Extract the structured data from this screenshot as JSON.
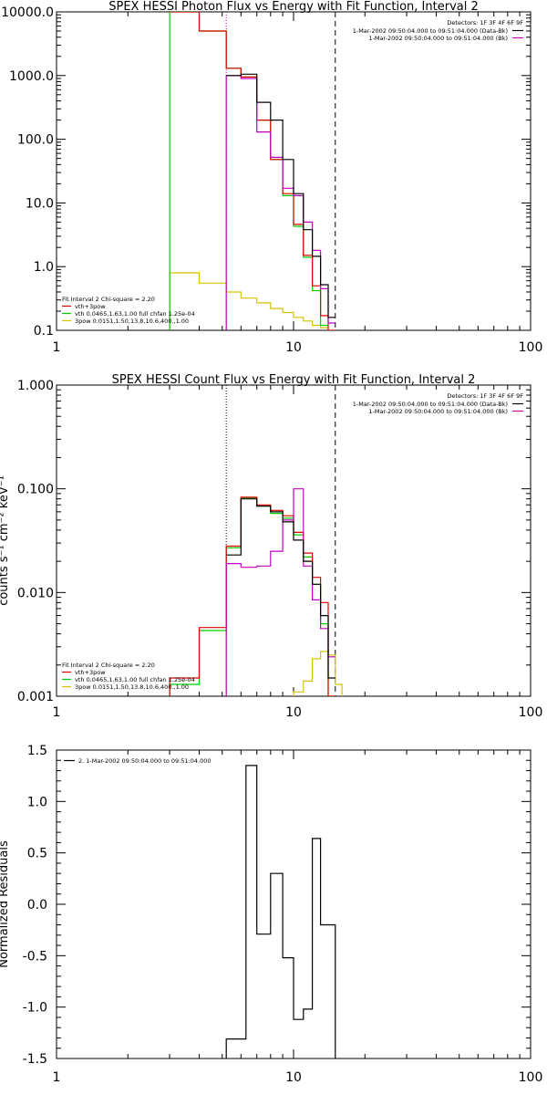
{
  "chart_data": [
    {
      "type": "line",
      "title": "SPEX HESSI Photon Flux vs Energy with Fit Function, Interval 2",
      "xscale": "log",
      "yscale": "log",
      "xlim": [
        1,
        100
      ],
      "ylim": [
        0.1,
        10000
      ],
      "x_ticks": [
        "1",
        "10",
        "100"
      ],
      "y_ticks": [
        "0.1",
        "1.0",
        "10.0",
        "100.0",
        "1000.0",
        "10000.0"
      ],
      "legend_top": {
        "header": "Detectors: 1F 3F 4F 6F 9F",
        "entries": [
          {
            "text": "1-Mar-2002 09:50:04.000 to 09:51:04.000 (Data-Bk)",
            "color": "#000000"
          },
          {
            "text": "1-Mar-2002 09:50:04.000 to 09:51:04.000 (Bk)",
            "color": "#c000c0"
          }
        ]
      },
      "legend_bottom": [
        {
          "text": "Fit Interval 2   Chi-square = 2.20",
          "color": ""
        },
        {
          "text": "vth+3pow",
          "color": "#e00000"
        },
        {
          "text": "vth 0.0465,1.63,1.00  full chfan 1.25e-04",
          "color": "#00d000"
        },
        {
          "text": "3pow 0.0151,1.50,13.8,10.6,400.,1.00",
          "color": "#d8c000"
        }
      ],
      "vlines": [
        {
          "x": 5.2,
          "style": "dotted",
          "color": "#c000c0"
        },
        {
          "x": 15,
          "style": "dashed",
          "color": "#000000"
        }
      ],
      "series": [
        {
          "name": "1-Mar-2002 09:50:04.000 to 09:51:04.000 (Data-Bk)",
          "color": "#000000",
          "step": true,
          "x": [
            5.2,
            6,
            6,
            7,
            7,
            8,
            8,
            9,
            9,
            10,
            10,
            11,
            11,
            12,
            12,
            13,
            13,
            14,
            14,
            15
          ],
          "y": [
            1000,
            1000,
            1050,
            1050,
            380,
            380,
            200,
            200,
            48,
            48,
            14,
            14,
            3.8,
            3.8,
            1.45,
            1.45,
            0.52,
            0.52,
            0.16,
            0.16
          ]
        },
        {
          "name": "1-Mar-2002 09:50:04.000 to 09:51:04.000 (Bk)",
          "color": "#c000c0",
          "step": true,
          "x": [
            5.2,
            5.2,
            6,
            6,
            7,
            7,
            8,
            8,
            9,
            9,
            10,
            10,
            11,
            11,
            12,
            12,
            13,
            13,
            14,
            14,
            15
          ],
          "y": [
            0.1,
            1000,
            1000,
            900,
            900,
            130,
            130,
            52,
            52,
            17,
            17,
            13,
            13,
            5,
            5,
            1.8,
            1.8,
            0.45,
            0.45,
            0.13,
            0.13
          ]
        },
        {
          "name": "vth+3pow",
          "color": "#e00000",
          "step": true,
          "x": [
            3,
            4,
            4,
            5.2,
            5.2,
            6,
            6,
            7,
            7,
            8,
            8,
            9,
            9,
            10,
            10,
            11,
            11,
            12,
            12,
            13,
            13,
            14,
            14,
            15
          ],
          "y": [
            10000,
            10000,
            5000,
            5000,
            1300,
            1300,
            950,
            950,
            200,
            200,
            48,
            48,
            14,
            14,
            4.6,
            4.6,
            1.5,
            1.5,
            0.5,
            0.5,
            0.17,
            0.17,
            0.1,
            0.1
          ]
        },
        {
          "name": "vth 0.0465,1.63,1.00  full chfan 1.25e-04",
          "color": "#00d000",
          "step": true,
          "x": [
            3,
            3,
            4,
            4,
            5.2,
            5.2,
            6,
            6,
            7,
            7,
            8,
            8,
            9,
            9,
            10,
            10,
            11,
            11,
            12,
            12,
            13,
            13,
            14
          ],
          "y": [
            0.1,
            10000,
            10000,
            5000,
            5000,
            1300,
            1300,
            950,
            950,
            200,
            200,
            48,
            48,
            13,
            13,
            4.3,
            4.3,
            1.4,
            1.4,
            0.42,
            0.42,
            0.12,
            0.12
          ]
        },
        {
          "name": "3pow 0.0151,1.50,13.8,10.6,400.,1.00",
          "color": "#d8c000",
          "step": true,
          "x": [
            3,
            3,
            4,
            4,
            5.2,
            5.2,
            6,
            6,
            7,
            7,
            8,
            8,
            9,
            9,
            10,
            10,
            11,
            11,
            12,
            12,
            13,
            13,
            14,
            14
          ],
          "y": [
            0.1,
            0.8,
            0.8,
            0.55,
            0.55,
            0.4,
            0.4,
            0.32,
            0.32,
            0.27,
            0.27,
            0.22,
            0.22,
            0.19,
            0.19,
            0.16,
            0.16,
            0.14,
            0.14,
            0.12,
            0.12,
            0.11,
            0.11,
            0.1
          ]
        }
      ]
    },
    {
      "type": "line",
      "title": "SPEX HESSI Count Flux vs Energy with Fit Function, Interval 2",
      "ylabel": "counts s⁻¹ cm⁻² keV⁻¹",
      "xscale": "log",
      "yscale": "log",
      "xlim": [
        1,
        100
      ],
      "ylim": [
        0.001,
        1
      ],
      "x_ticks": [
        "1",
        "10",
        "100"
      ],
      "y_ticks": [
        "0.001",
        "0.010",
        "0.100",
        "1.000"
      ],
      "legend_top": {
        "header": "Detectors: 1F 3F 4F 6F 9F",
        "entries": [
          {
            "text": "1-Mar-2002 09:50:04.000 to 09:51:04.000 (Data-Bk)",
            "color": "#000000"
          },
          {
            "text": "1-Mar-2002 09:50:04.000 to 09:51:04.000 (Bk)",
            "color": "#c000c0"
          }
        ]
      },
      "legend_bottom": [
        {
          "text": "Fit Interval 2   Chi-square = 2.20",
          "color": ""
        },
        {
          "text": "vth+3pow",
          "color": "#e00000"
        },
        {
          "text": "vth 0.0465,1.63,1.00  full chfan 1.25e-04",
          "color": "#00d000"
        },
        {
          "text": "3pow 0.0151,1.50,13.8,10.6,400.,1.00",
          "color": "#d8c000"
        }
      ],
      "vlines": [
        {
          "x": 5.2,
          "style": "dotted",
          "color": "#000000"
        },
        {
          "x": 15,
          "style": "dashed",
          "color": "#000000"
        }
      ],
      "series": [
        {
          "name": "1-Mar-2002 09:50:04.000 to 09:51:04.000 (Data-Bk)",
          "color": "#000000",
          "step": true,
          "x": [
            5.2,
            6,
            6,
            7,
            7,
            8,
            8,
            9,
            9,
            10,
            10,
            11,
            11,
            12,
            12,
            13,
            13,
            14,
            14,
            15
          ],
          "y": [
            0.023,
            0.023,
            0.08,
            0.08,
            0.068,
            0.068,
            0.06,
            0.06,
            0.048,
            0.048,
            0.032,
            0.032,
            0.02,
            0.02,
            0.012,
            0.012,
            0.006,
            0.006,
            0.0015,
            0.0015
          ]
        },
        {
          "name": "1-Mar-2002 09:50:04.000 to 09:51:04.000 (Bk)",
          "color": "#c000c0",
          "step": true,
          "x": [
            5.2,
            5.2,
            6,
            6,
            7,
            7,
            8,
            8,
            9,
            9,
            10,
            10,
            11,
            11,
            12,
            12,
            13,
            13,
            14,
            14,
            15
          ],
          "y": [
            0.001,
            0.019,
            0.019,
            0.0175,
            0.0175,
            0.018,
            0.018,
            0.025,
            0.025,
            0.05,
            0.05,
            0.1,
            0.1,
            0.018,
            0.018,
            0.0085,
            0.0085,
            0.0045,
            0.0045,
            0.0024,
            0.0024
          ]
        },
        {
          "name": "vth+3pow",
          "color": "#e00000",
          "step": true,
          "x": [
            3,
            3,
            4,
            4,
            5.2,
            5.2,
            6,
            6,
            7,
            7,
            8,
            8,
            9,
            9,
            10,
            10,
            11,
            11,
            12,
            12,
            13,
            13,
            14,
            14,
            15
          ],
          "y": [
            0.001,
            0.0015,
            0.0015,
            0.0046,
            0.0046,
            0.028,
            0.028,
            0.083,
            0.083,
            0.07,
            0.07,
            0.062,
            0.062,
            0.055,
            0.055,
            0.038,
            0.038,
            0.024,
            0.024,
            0.014,
            0.014,
            0.008,
            0.008,
            0.001,
            0.001
          ]
        },
        {
          "name": "vth 0.0465,1.63,1.00  full chfan 1.25e-04",
          "color": "#00d000",
          "step": true,
          "x": [
            3,
            3,
            4,
            4,
            5.2,
            5.2,
            6,
            6,
            7,
            7,
            8,
            8,
            9,
            9,
            10,
            10,
            11,
            11,
            12,
            12,
            13,
            13,
            14,
            14,
            15
          ],
          "y": [
            0.001,
            0.0013,
            0.0013,
            0.0043,
            0.0043,
            0.027,
            0.027,
            0.082,
            0.082,
            0.068,
            0.068,
            0.058,
            0.058,
            0.052,
            0.052,
            0.036,
            0.036,
            0.022,
            0.022,
            0.012,
            0.012,
            0.005,
            0.005,
            0.001,
            0.001
          ]
        },
        {
          "name": "3pow 0.0151,1.50,13.8,10.6,400.,1.00",
          "color": "#d8c000",
          "step": true,
          "x": [
            10,
            10,
            11,
            11,
            12,
            12,
            13,
            13,
            14,
            14,
            15,
            15,
            16,
            16
          ],
          "y": [
            0.001,
            0.0011,
            0.0011,
            0.0014,
            0.0014,
            0.0023,
            0.0023,
            0.0027,
            0.0027,
            0.0025,
            0.0025,
            0.0013,
            0.0013,
            0.001
          ]
        }
      ]
    },
    {
      "type": "line",
      "ylabel": "Normalized Residuals",
      "xscale": "log",
      "yscale": "linear",
      "xlim": [
        1,
        100
      ],
      "ylim": [
        -1.5,
        1.5
      ],
      "x_ticks": [
        "1",
        "10",
        "100"
      ],
      "y_ticks": [
        "-1.5",
        "-1.0",
        "-0.5",
        "0.0",
        "0.5",
        "1.0",
        "1.5"
      ],
      "legend_top_left": {
        "text": "2. 1-Mar-2002 09:50:04.000 to 09:51:04.000",
        "color": "#000000"
      },
      "series": [
        {
          "name": "2. 1-Mar-2002 09:50:04.000 to 09:51:04.000",
          "color": "#000000",
          "step": true,
          "x": [
            5.2,
            5.2,
            6.3,
            6.3,
            7,
            7,
            8,
            8,
            9,
            9,
            10,
            10,
            11,
            11,
            12,
            12,
            13,
            13,
            14,
            14,
            15,
            15
          ],
          "y": [
            -1.5,
            -1.31,
            -1.31,
            1.35,
            1.35,
            -0.29,
            -0.29,
            0.3,
            0.3,
            -0.52,
            -0.52,
            -1.12,
            -1.12,
            -1.02,
            -1.02,
            0.64,
            0.64,
            -0.2,
            -0.2,
            -0.2,
            -0.2,
            -1.5
          ]
        }
      ]
    }
  ]
}
